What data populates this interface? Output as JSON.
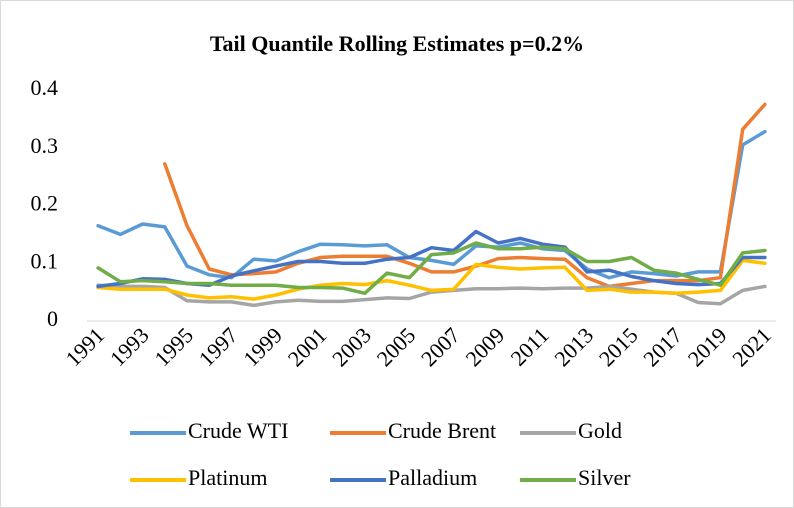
{
  "chart_data": {
    "type": "line",
    "title": "Tail Quantile Rolling Estimates p=0.2%",
    "categories": [
      "1991",
      null,
      "1993",
      null,
      "1995",
      null,
      "1997",
      null,
      "1999",
      null,
      "2001",
      null,
      "2003",
      null,
      "2005",
      null,
      "2007",
      null,
      "2009",
      null,
      "2011",
      null,
      "2013",
      null,
      "2015",
      null,
      "2017",
      null,
      "2019",
      null,
      "2021"
    ],
    "ylim": [
      0,
      0.4
    ],
    "yticks": [
      0,
      0.1,
      0.2,
      0.3,
      0.4
    ],
    "grid": false,
    "legend": "bottom",
    "series": [
      {
        "name": "Crude WTI",
        "color": "#5b9bd5",
        "values": [
          0.165,
          0.15,
          0.168,
          0.163,
          0.095,
          0.08,
          0.075,
          0.107,
          0.104,
          0.12,
          0.133,
          0.132,
          0.13,
          0.132,
          0.11,
          0.105,
          0.098,
          0.13,
          0.128,
          0.135,
          0.125,
          0.122,
          0.09,
          0.075,
          0.085,
          0.082,
          0.078,
          0.085,
          0.085,
          0.305,
          0.328
        ]
      },
      {
        "name": "Crude Brent",
        "color": "#ed7d31",
        "values": [
          null,
          null,
          null,
          0.272,
          0.165,
          0.09,
          0.08,
          0.082,
          0.085,
          0.1,
          0.11,
          0.112,
          0.112,
          0.112,
          0.1,
          0.085,
          0.085,
          0.095,
          0.108,
          0.11,
          0.108,
          0.107,
          0.075,
          0.06,
          0.065,
          0.07,
          0.07,
          0.07,
          0.075,
          0.332,
          0.375
        ]
      },
      {
        "name": "Gold",
        "color": "#a5a5a5",
        "values": [
          0.062,
          0.06,
          0.06,
          0.058,
          0.035,
          0.033,
          0.033,
          0.027,
          0.033,
          0.036,
          0.034,
          0.034,
          0.037,
          0.04,
          0.039,
          0.05,
          0.053,
          0.056,
          0.056,
          0.057,
          0.056,
          0.057,
          0.057,
          0.06,
          0.055,
          0.05,
          0.048,
          0.032,
          0.03,
          0.053,
          0.06
        ]
      },
      {
        "name": "Platinum",
        "color": "#ffc000",
        "values": [
          0.058,
          0.055,
          0.055,
          0.055,
          0.045,
          0.04,
          0.042,
          0.038,
          0.045,
          0.055,
          0.062,
          0.065,
          0.063,
          0.07,
          0.062,
          0.053,
          0.055,
          0.098,
          0.093,
          0.09,
          0.092,
          0.093,
          0.053,
          0.055,
          0.05,
          0.05,
          0.048,
          0.05,
          0.053,
          0.105,
          0.1
        ]
      },
      {
        "name": "Palladium",
        "color": "#4472c4",
        "values": [
          0.06,
          0.065,
          0.073,
          0.072,
          0.065,
          0.062,
          0.078,
          0.087,
          0.095,
          0.103,
          0.103,
          0.1,
          0.1,
          0.107,
          0.11,
          0.127,
          0.122,
          0.155,
          0.135,
          0.143,
          0.133,
          0.128,
          0.085,
          0.088,
          0.077,
          0.07,
          0.065,
          0.063,
          0.065,
          0.11,
          0.11
        ]
      },
      {
        "name": "Silver",
        "color": "#70ad47",
        "values": [
          0.092,
          0.068,
          0.07,
          0.068,
          0.065,
          0.065,
          0.062,
          0.062,
          0.062,
          0.058,
          0.058,
          0.057,
          0.048,
          0.083,
          0.075,
          0.115,
          0.118,
          0.135,
          0.125,
          0.125,
          0.128,
          0.125,
          0.103,
          0.103,
          0.11,
          0.088,
          0.083,
          0.072,
          0.062,
          0.118,
          0.122
        ]
      }
    ]
  }
}
